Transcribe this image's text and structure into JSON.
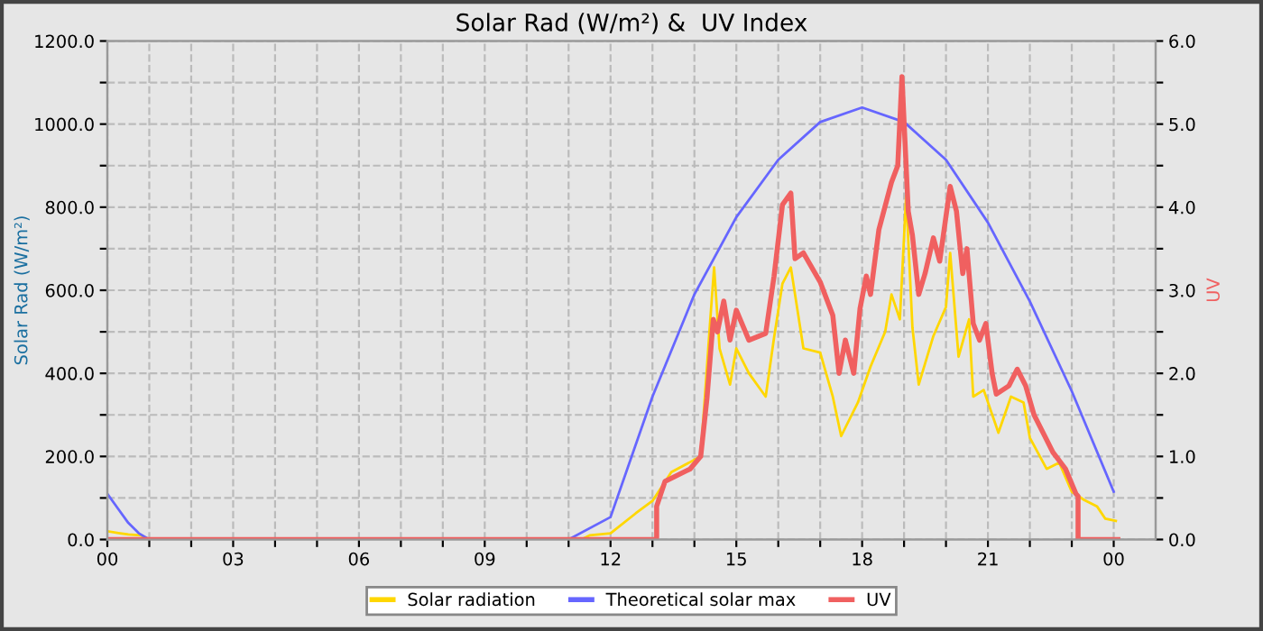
{
  "chart_data": {
    "type": "line",
    "title": "Solar Rad (W/m²) &  UV Index",
    "ylabel": "Solar Rad (W/m²)",
    "y2label": "UV",
    "xlim": [
      0,
      25
    ],
    "xticks": [
      {
        "value": 0,
        "label": "00"
      },
      {
        "value": 1,
        "label": null
      },
      {
        "value": 2,
        "label": null
      },
      {
        "value": 3,
        "label": "03"
      },
      {
        "value": 4,
        "label": null
      },
      {
        "value": 5,
        "label": null
      },
      {
        "value": 6,
        "label": "06"
      },
      {
        "value": 7,
        "label": null
      },
      {
        "value": 8,
        "label": null
      },
      {
        "value": 9,
        "label": "09"
      },
      {
        "value": 10,
        "label": null
      },
      {
        "value": 11,
        "label": null
      },
      {
        "value": 12,
        "label": "12"
      },
      {
        "value": 13,
        "label": null
      },
      {
        "value": 14,
        "label": null
      },
      {
        "value": 15,
        "label": "15"
      },
      {
        "value": 16,
        "label": null
      },
      {
        "value": 17,
        "label": null
      },
      {
        "value": 18,
        "label": "18"
      },
      {
        "value": 19,
        "label": null
      },
      {
        "value": 20,
        "label": null
      },
      {
        "value": 21,
        "label": "21"
      },
      {
        "value": 22,
        "label": null
      },
      {
        "value": 23,
        "label": null
      },
      {
        "value": 24,
        "label": "00"
      }
    ],
    "ylim": [
      0,
      1200
    ],
    "yticks": [
      {
        "value": 0,
        "label": "0.0"
      },
      {
        "value": 100,
        "label": null
      },
      {
        "value": 200,
        "label": "200.0"
      },
      {
        "value": 300,
        "label": null
      },
      {
        "value": 400,
        "label": "400.0"
      },
      {
        "value": 500,
        "label": null
      },
      {
        "value": 600,
        "label": "600.0"
      },
      {
        "value": 700,
        "label": null
      },
      {
        "value": 800,
        "label": "800.0"
      },
      {
        "value": 900,
        "label": null
      },
      {
        "value": 1000,
        "label": "1000.0"
      },
      {
        "value": 1100,
        "label": null
      },
      {
        "value": 1200,
        "label": "1200.0"
      }
    ],
    "y2lim": [
      0,
      6
    ],
    "y2ticks": [
      {
        "value": 0,
        "label": "0.0"
      },
      {
        "value": 0.5,
        "label": null
      },
      {
        "value": 1,
        "label": "1.0"
      },
      {
        "value": 1.5,
        "label": null
      },
      {
        "value": 2,
        "label": "2.0"
      },
      {
        "value": 2.5,
        "label": null
      },
      {
        "value": 3,
        "label": "3.0"
      },
      {
        "value": 3.5,
        "label": null
      },
      {
        "value": 4,
        "label": "4.0"
      },
      {
        "value": 4.5,
        "label": null
      },
      {
        "value": 5,
        "label": "5.0"
      },
      {
        "value": 5.5,
        "label": null
      },
      {
        "value": 6,
        "label": "6.0"
      }
    ],
    "grid": true,
    "legend": "bottom",
    "line_style": "solid",
    "marker": "none",
    "series": [
      {
        "name": "Solar radiation",
        "color": "#ffd700",
        "x": [
          0,
          0.3,
          0.5,
          0.8,
          1.0,
          11.3,
          11.5,
          12.0,
          12.6,
          13.0,
          13.45,
          14.15,
          14.37,
          14.47,
          14.6,
          14.85,
          15.0,
          15.3,
          15.7,
          15.9,
          16.1,
          16.3,
          16.6,
          17.0,
          17.3,
          17.5,
          17.9,
          18.2,
          18.55,
          18.7,
          18.9,
          19.05,
          19.2,
          19.35,
          19.7,
          20.0,
          20.1,
          20.3,
          20.55,
          20.65,
          20.9,
          21.25,
          21.55,
          21.85,
          22.0,
          22.4,
          22.7,
          23.0,
          23.3,
          23.6,
          23.8,
          24.05
        ],
        "values": [
          20,
          15,
          12,
          10,
          0,
          0,
          10,
          15,
          63,
          93,
          162,
          200,
          517,
          655,
          460,
          373,
          460,
          400,
          344,
          486,
          616,
          655,
          460,
          450,
          344,
          249,
          330,
          416,
          500,
          590,
          530,
          828,
          510,
          373,
          490,
          560,
          690,
          440,
          530,
          344,
          360,
          257,
          344,
          330,
          245,
          170,
          185,
          115,
          95,
          80,
          50,
          45
        ]
      },
      {
        "name": "Theoretical solar max",
        "color": "#6666ff",
        "x": [
          0,
          0.25,
          0.5,
          0.75,
          1.0,
          11.0,
          12,
          13,
          14,
          15,
          16,
          17,
          18,
          19,
          20,
          21,
          22,
          23,
          24
        ],
        "values": [
          110,
          75,
          40,
          15,
          0,
          0,
          54,
          344,
          590,
          776,
          914,
          1005,
          1040,
          1005,
          914,
          763,
          573,
          357,
          115
        ]
      },
      {
        "name": "UV",
        "color": "#f06060",
        "axis": "y2",
        "x": [
          0,
          13.1,
          13.1,
          13.3,
          13.9,
          14.15,
          14.3,
          14.45,
          14.55,
          14.7,
          14.85,
          15.0,
          15.3,
          15.7,
          15.9,
          16.1,
          16.3,
          16.4,
          16.6,
          17.0,
          17.3,
          17.45,
          17.6,
          17.8,
          17.95,
          18.1,
          18.2,
          18.4,
          18.7,
          18.85,
          18.95,
          19.1,
          19.2,
          19.35,
          19.5,
          19.7,
          19.85,
          20.1,
          20.25,
          20.4,
          20.5,
          20.65,
          20.8,
          20.95,
          21.1,
          21.2,
          21.5,
          21.7,
          21.9,
          22.1,
          22.35,
          22.55,
          22.85,
          23.1,
          23.15,
          23.15,
          24.1
        ],
        "values": [
          0,
          0,
          0.4,
          0.7,
          0.85,
          1.0,
          1.7,
          2.65,
          2.5,
          2.87,
          2.4,
          2.76,
          2.4,
          2.48,
          3.17,
          4.03,
          4.17,
          3.38,
          3.45,
          3.1,
          2.7,
          2.0,
          2.4,
          2.0,
          2.78,
          3.17,
          2.95,
          3.73,
          4.3,
          4.5,
          5.57,
          3.95,
          3.66,
          2.95,
          3.2,
          3.63,
          3.35,
          4.25,
          3.95,
          3.2,
          3.5,
          2.6,
          2.4,
          2.6,
          2.0,
          1.75,
          1.85,
          2.05,
          1.85,
          1.5,
          1.25,
          1.05,
          0.85,
          0.55,
          0.52,
          0,
          0
        ]
      }
    ]
  }
}
